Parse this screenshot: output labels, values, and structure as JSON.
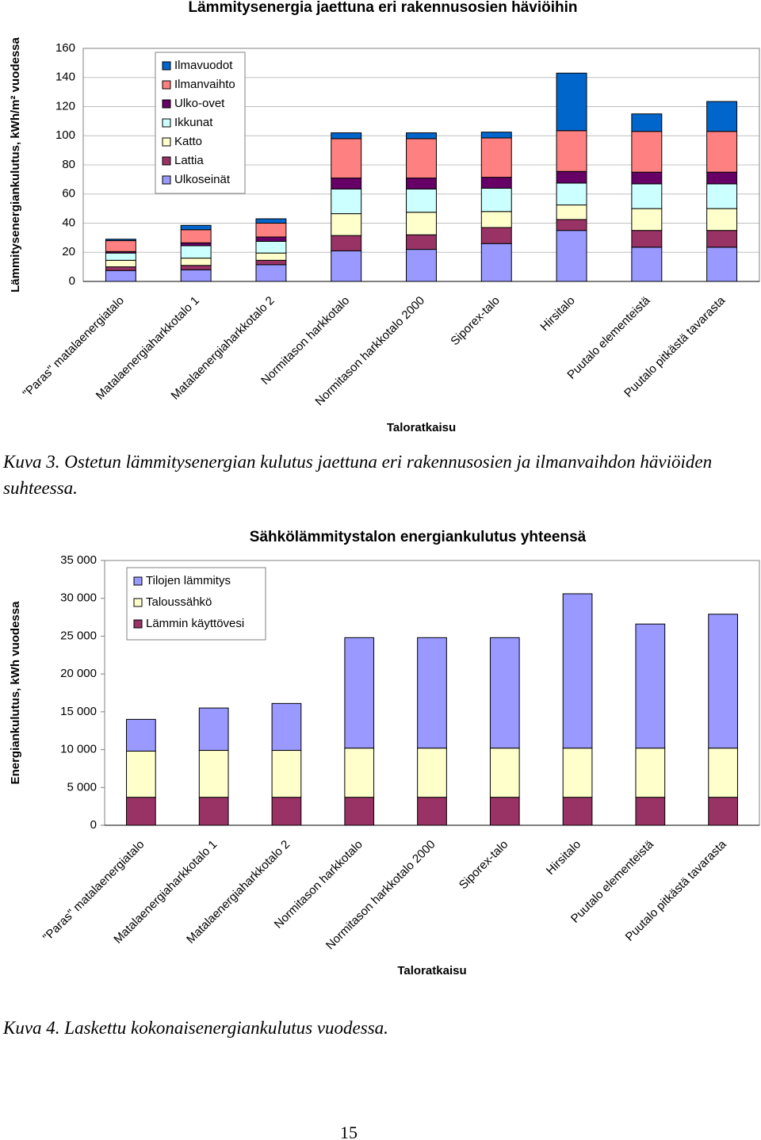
{
  "chart_data": [
    {
      "type": "bar",
      "stacked": true,
      "title": "Lämmitysenergia jaettuna eri rakennusosien häviöihin",
      "y_label": "Lämmitysenergiankulutus, kWh/m² vuodessa",
      "x_label": "Taloratkaisu",
      "categories": [
        "\"Paras\" matalaenergiatalo",
        "Matalaenergiaharkkotalo 1",
        "Matalaenergiaharkkotalo 2",
        "Normitason harkkotalo",
        "Normitason harkkotalo 2000",
        "Siporex-talo",
        "Hirsitalo",
        "Puutalo elementeistä",
        "Puutalo pitkästä tavarasta"
      ],
      "series": [
        {
          "name": "Ulkoseinät",
          "color": "#9999ff",
          "values": [
            7.5,
            8,
            11.5,
            21,
            22,
            26,
            35,
            23.5,
            23.5
          ]
        },
        {
          "name": "Lattia",
          "color": "#993366",
          "values": [
            2.5,
            3,
            3,
            10.5,
            10,
            11,
            7.5,
            11.5,
            11.5
          ]
        },
        {
          "name": "Katto",
          "color": "#ffffcc",
          "values": [
            4.5,
            5,
            5,
            15,
            15.5,
            11,
            10,
            15,
            15
          ]
        },
        {
          "name": "Ikkunat",
          "color": "#ccffff",
          "values": [
            5,
            8.5,
            8,
            17,
            16,
            16,
            15,
            17,
            17
          ]
        },
        {
          "name": "Ulko-ovet",
          "color": "#660066",
          "values": [
            1,
            2,
            3,
            7.5,
            7.5,
            7.5,
            8,
            8,
            8
          ]
        },
        {
          "name": "Ilmanvaihto",
          "color": "#ff8080",
          "values": [
            7.5,
            9,
            9.5,
            27,
            27,
            27,
            28,
            28,
            28
          ]
        },
        {
          "name": "Ilmavuodot",
          "color": "#0066cc",
          "values": [
            1,
            3,
            3,
            4,
            4,
            4,
            39.5,
            12,
            20.5
          ]
        }
      ],
      "ylim": [
        0,
        160
      ],
      "yticks": [
        0,
        20,
        40,
        60,
        80,
        100,
        120,
        140,
        160
      ],
      "grid": true,
      "legend": "top-left"
    },
    {
      "type": "bar",
      "stacked": true,
      "title": "Sähkölämmitystalon energiankulutus yhteensä",
      "y_label": "Energiankulutus, kWh vuodessa",
      "x_label": "Taloratkaisu",
      "categories": [
        "\"Paras\" matalaenergiatalo",
        "Matalaenergiaharkkotalo 1",
        "Matalaenergiaharkkotalo 2",
        "Normitason harkkotalo",
        "Normitason harkkotalo 2000",
        "Siporex-talo",
        "Hirsitalo",
        "Puutalo elementeistä",
        "Puutalo pitkästä tavarasta"
      ],
      "series": [
        {
          "name": "Lämmin käyttövesi",
          "color": "#993366",
          "values": [
            3700,
            3700,
            3700,
            3700,
            3700,
            3700,
            3700,
            3700,
            3700
          ]
        },
        {
          "name": "Taloussähkö",
          "color": "#ffffcc",
          "values": [
            6100,
            6200,
            6200,
            6500,
            6500,
            6500,
            6500,
            6500,
            6500
          ]
        },
        {
          "name": "Tilojen lämmitys",
          "color": "#9999ff",
          "values": [
            4200,
            5600,
            6200,
            14600,
            14600,
            14600,
            20400,
            16400,
            17700
          ]
        }
      ],
      "ylim": [
        0,
        35000
      ],
      "yticks": [
        0,
        {
          "value": 5000,
          "label": "5 000"
        },
        {
          "value": 10000,
          "label": "10 000"
        },
        {
          "value": 15000,
          "label": "15 000"
        },
        {
          "value": 20000,
          "label": "20 000"
        },
        {
          "value": 25000,
          "label": "25 000"
        },
        {
          "value": 30000,
          "label": "30 000"
        },
        {
          "value": 35000,
          "label": "35 000"
        }
      ],
      "grid": false,
      "legend": "top-left"
    }
  ],
  "captions": [
    "Kuva 3. Ostetun lämmitysenergian kulutus jaettuna eri rakennusosien ja ilmanvaihdon häviöiden suhteessa.",
    "Kuva 4. Laskettu kokonaisenergiankulutus vuodessa."
  ],
  "page_number": "15"
}
